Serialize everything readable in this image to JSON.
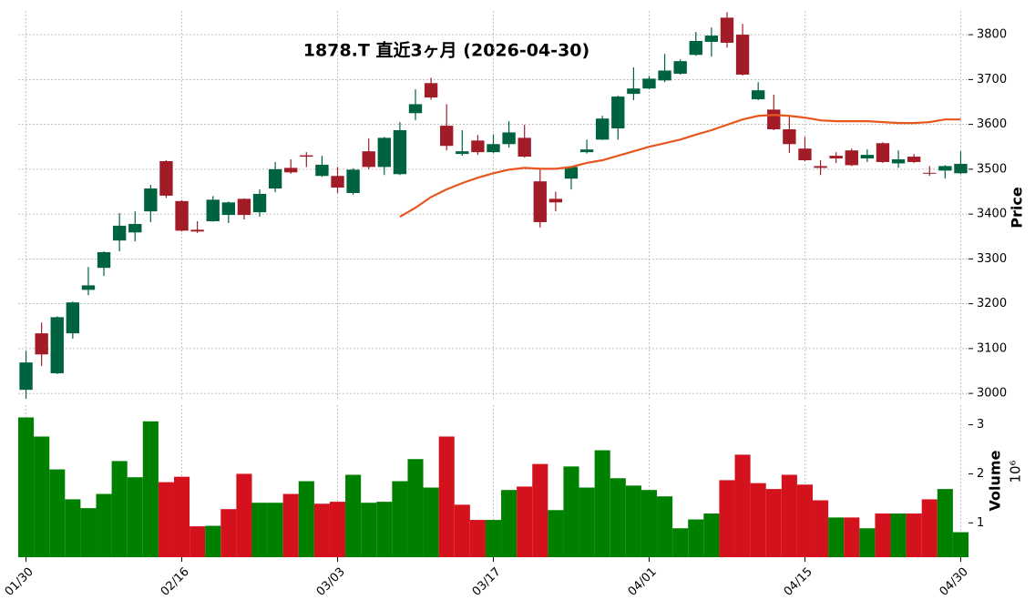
{
  "chart_data": {
    "type": "candlestick",
    "title": "1878.T  直近3ヶ月  (2026-04-30)",
    "categories": [
      "01/30",
      null,
      null,
      null,
      null,
      null,
      null,
      null,
      null,
      null,
      "02/16",
      null,
      null,
      null,
      null,
      null,
      null,
      null,
      null,
      null,
      "03/03",
      null,
      null,
      null,
      null,
      null,
      null,
      null,
      null,
      null,
      "03/17",
      null,
      null,
      null,
      null,
      null,
      null,
      null,
      null,
      null,
      "04/01",
      null,
      null,
      null,
      null,
      null,
      null,
      null,
      null,
      null,
      "04/15",
      null,
      null,
      null,
      null,
      null,
      null,
      null,
      null,
      null,
      "04/30"
    ],
    "open": [
      3008,
      3134,
      3045,
      3134,
      3231,
      3280,
      3341,
      3359,
      3406,
      3518,
      3429,
      3365,
      3384,
      3398,
      3434,
      3404,
      3457,
      3503,
      3531,
      3485,
      3485,
      3447,
      3540,
      3505,
      3489,
      3625,
      3692,
      3597,
      3534,
      3564,
      3538,
      3556,
      3570,
      3473,
      3434,
      3479,
      3538,
      3566,
      3591,
      3668,
      3680,
      3698,
      3713,
      3755,
      3784,
      3838,
      3800,
      3656,
      3633,
      3589,
      3546,
      3507,
      3530,
      3542,
      3524,
      3558,
      3513,
      3528,
      3492,
      3497,
      3491
    ],
    "high": [
      3095,
      3158,
      3172,
      3205,
      3282,
      3317,
      3402,
      3406,
      3465,
      3520,
      3431,
      3384,
      3440,
      3428,
      3435,
      3455,
      3516,
      3522,
      3538,
      3530,
      3505,
      3502,
      3569,
      3572,
      3605,
      3678,
      3704,
      3645,
      3587,
      3576,
      3578,
      3607,
      3599,
      3500,
      3450,
      3507,
      3566,
      3619,
      3664,
      3727,
      3708,
      3757,
      3745,
      3806,
      3816,
      3850,
      3824,
      3694,
      3666,
      3617,
      3572,
      3520,
      3538,
      3546,
      3544,
      3560,
      3542,
      3534,
      3507,
      3509,
      3540
    ],
    "low": [
      2988,
      3061,
      3043,
      3122,
      3219,
      3262,
      3317,
      3339,
      3382,
      3436,
      3361,
      3358,
      3383,
      3380,
      3388,
      3394,
      3449,
      3490,
      3505,
      3483,
      3447,
      3443,
      3500,
      3487,
      3487,
      3609,
      3655,
      3542,
      3530,
      3532,
      3536,
      3548,
      3526,
      3370,
      3406,
      3455,
      3535,
      3565,
      3566,
      3654,
      3678,
      3694,
      3711,
      3753,
      3751,
      3771,
      3709,
      3654,
      3587,
      3536,
      3518,
      3487,
      3514,
      3507,
      3516,
      3514,
      3503,
      3514,
      3485,
      3479,
      3489
    ],
    "close": [
      3069,
      3087,
      3170,
      3203,
      3241,
      3315,
      3374,
      3378,
      3457,
      3441,
      3363,
      3361,
      3432,
      3426,
      3398,
      3445,
      3500,
      3493,
      3528,
      3510,
      3459,
      3499,
      3505,
      3570,
      3587,
      3645,
      3660,
      3552,
      3540,
      3538,
      3556,
      3582,
      3528,
      3382,
      3426,
      3505,
      3544,
      3613,
      3662,
      3680,
      3702,
      3720,
      3741,
      3786,
      3798,
      3782,
      3711,
      3676,
      3589,
      3556,
      3520,
      3503,
      3524,
      3509,
      3532,
      3516,
      3522,
      3516,
      3490,
      3507,
      3512
    ],
    "up_color": "#00633f",
    "down_color": "#a21c28",
    "ylim": [
      2984,
      3853
    ],
    "yticks": [
      3000,
      3100,
      3200,
      3300,
      3400,
      3500,
      3600,
      3700,
      3800
    ],
    "ylabel": "Price",
    "grid": true,
    "moving_average": {
      "color": "#e8561e",
      "values": [
        null,
        null,
        null,
        null,
        null,
        null,
        null,
        null,
        null,
        null,
        null,
        null,
        null,
        null,
        null,
        null,
        null,
        null,
        null,
        null,
        null,
        null,
        null,
        null,
        3394,
        3414,
        3438,
        3455,
        3469,
        3481,
        3491,
        3499,
        3503,
        3501,
        3501,
        3505,
        3514,
        3520,
        3530,
        3540,
        3550,
        3558,
        3566,
        3577,
        3587,
        3599,
        3611,
        3619,
        3621,
        3619,
        3615,
        3609,
        3607,
        3607,
        3607,
        3605,
        3603,
        3603,
        3605,
        3611,
        3611
      ]
    },
    "volume": {
      "values": [
        3.15,
        2.76,
        2.09,
        1.48,
        1.3,
        1.59,
        2.26,
        1.93,
        3.07,
        1.83,
        1.94,
        0.93,
        0.94,
        1.28,
        2.0,
        1.41,
        1.41,
        1.59,
        1.85,
        1.39,
        1.43,
        1.98,
        1.41,
        1.43,
        1.85,
        2.3,
        1.72,
        2.76,
        1.37,
        1.06,
        1.06,
        1.67,
        1.74,
        2.2,
        1.26,
        2.15,
        1.72,
        2.48,
        1.91,
        1.76,
        1.67,
        1.54,
        0.89,
        1.07,
        1.19,
        1.87,
        2.39,
        1.81,
        1.69,
        1.98,
        1.78,
        1.46,
        1.11,
        1.11,
        0.89,
        1.19,
        1.19,
        1.19,
        1.48,
        1.69,
        0.81
      ],
      "ylabel": "Volume",
      "scale_label": "10⁶",
      "ylim": [
        0.3,
        3.4
      ],
      "yticks": [
        1,
        2,
        3
      ],
      "up_color": "#008000",
      "down_color": "#d4121d"
    }
  }
}
